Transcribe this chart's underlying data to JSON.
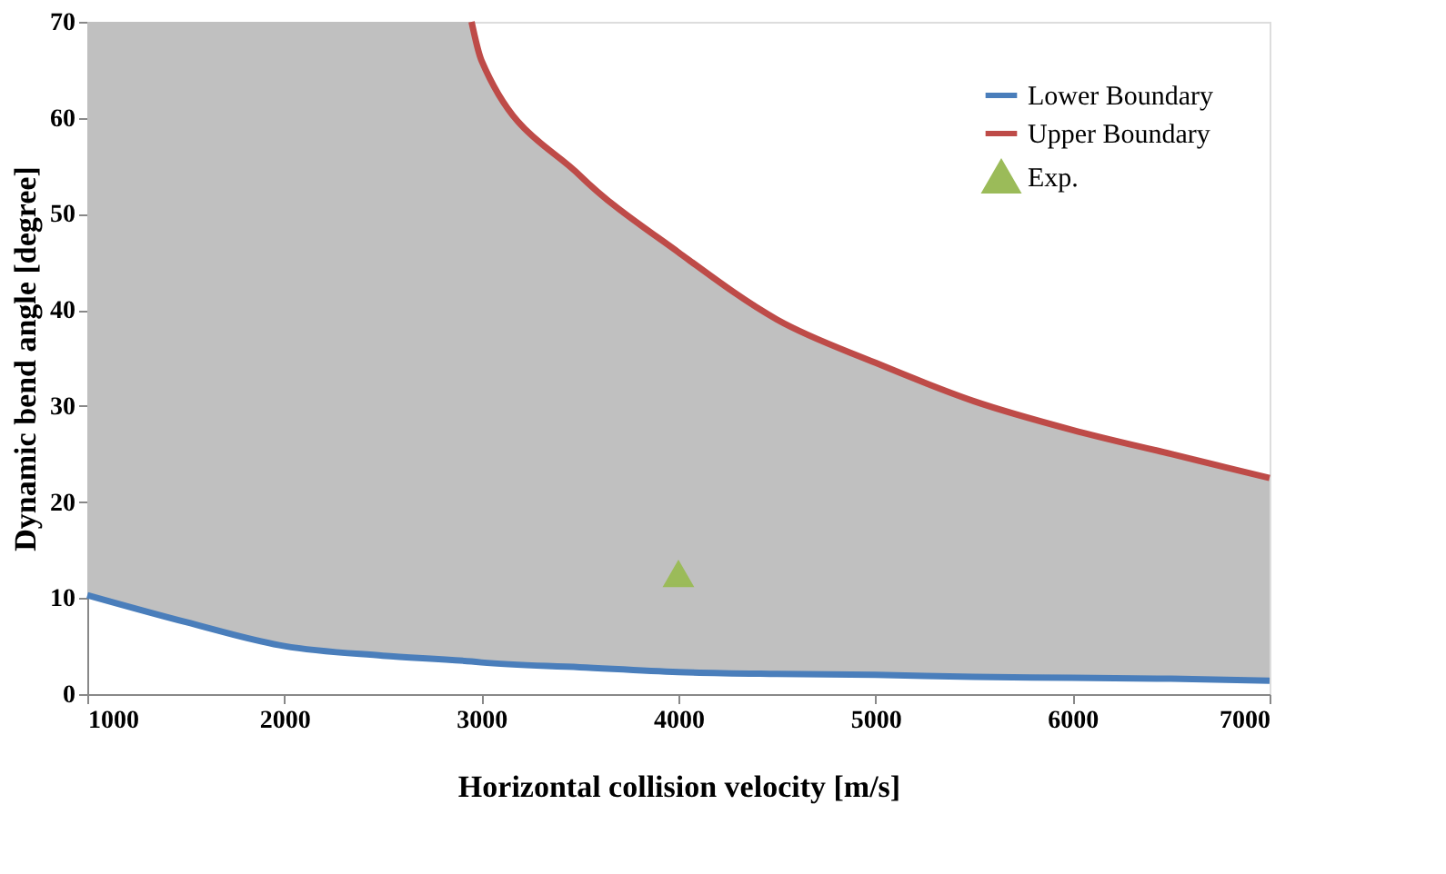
{
  "chart_data": {
    "type": "line",
    "xlabel": "Horizontal collision velocity [m/s]",
    "ylabel": "Dynamic bend angle [degree]",
    "xlim": [
      1000,
      7000
    ],
    "xticks": [
      1000,
      2000,
      3000,
      4000,
      5000,
      6000,
      7000
    ],
    "ylim": [
      0,
      70
    ],
    "yticks": [
      0,
      10,
      20,
      30,
      40,
      50,
      60,
      70
    ],
    "grid": false,
    "legend": "top right",
    "series": [
      {
        "name": "Lower Boundary",
        "color": "#4a7ebb",
        "x": [
          1000,
          1500,
          2000,
          2500,
          2950,
          3000,
          3500,
          4000,
          4500,
          5000,
          5500,
          6000,
          6500,
          7000
        ],
        "values": [
          10.3,
          7.5,
          5,
          4,
          3.4,
          3.3,
          2.8,
          2.3,
          2.1,
          2,
          1.8,
          1.7,
          1.6,
          1.4
        ],
        "lower": [
          10.3,
          7.5,
          5,
          4,
          3.4,
          3.3,
          2.8,
          2.3,
          2.1,
          2,
          1.8,
          1.7,
          1.6,
          1.4
        ],
        "upper": [
          70,
          70,
          70,
          70,
          70,
          66,
          54,
          46,
          39,
          34.5,
          30.5,
          27.5,
          25,
          22.5
        ]
      },
      {
        "name": "Upper Boundary",
        "color": "#be4b48",
        "x": [
          2950,
          3000,
          3500,
          4000,
          4500,
          5000,
          5500,
          6000,
          6500,
          7000
        ],
        "values": [
          70,
          66,
          54,
          46,
          39,
          34.5,
          30.5,
          27.5,
          25,
          22.5
        ]
      },
      {
        "type": "scatter",
        "name": "Exp.",
        "color": "#9bbb59",
        "marker": "triangle",
        "x": [
          4000
        ],
        "values": [
          12.5
        ]
      }
    ]
  }
}
